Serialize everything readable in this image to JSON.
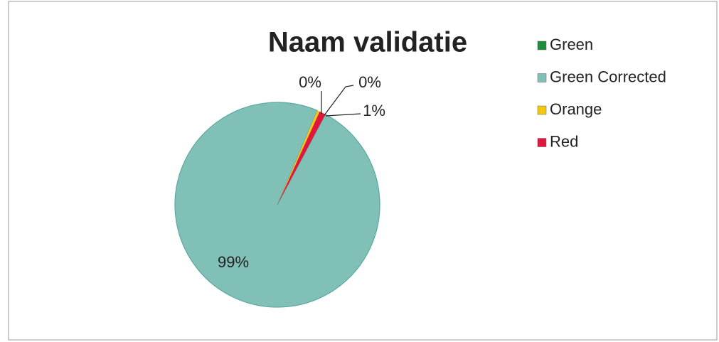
{
  "chart_data": {
    "type": "pie",
    "title": "Naam validatie",
    "categories": [
      "Green",
      "Green Corrected",
      "Orange",
      "Red"
    ],
    "values": [
      0,
      98.6,
      0.4,
      1
    ],
    "value_labels": [
      "0%",
      "99%",
      "0%",
      "1%"
    ],
    "colors": [
      "#1e8a3e",
      "#80c0b6",
      "#f2c811",
      "#e0173c"
    ],
    "legend": "right"
  }
}
